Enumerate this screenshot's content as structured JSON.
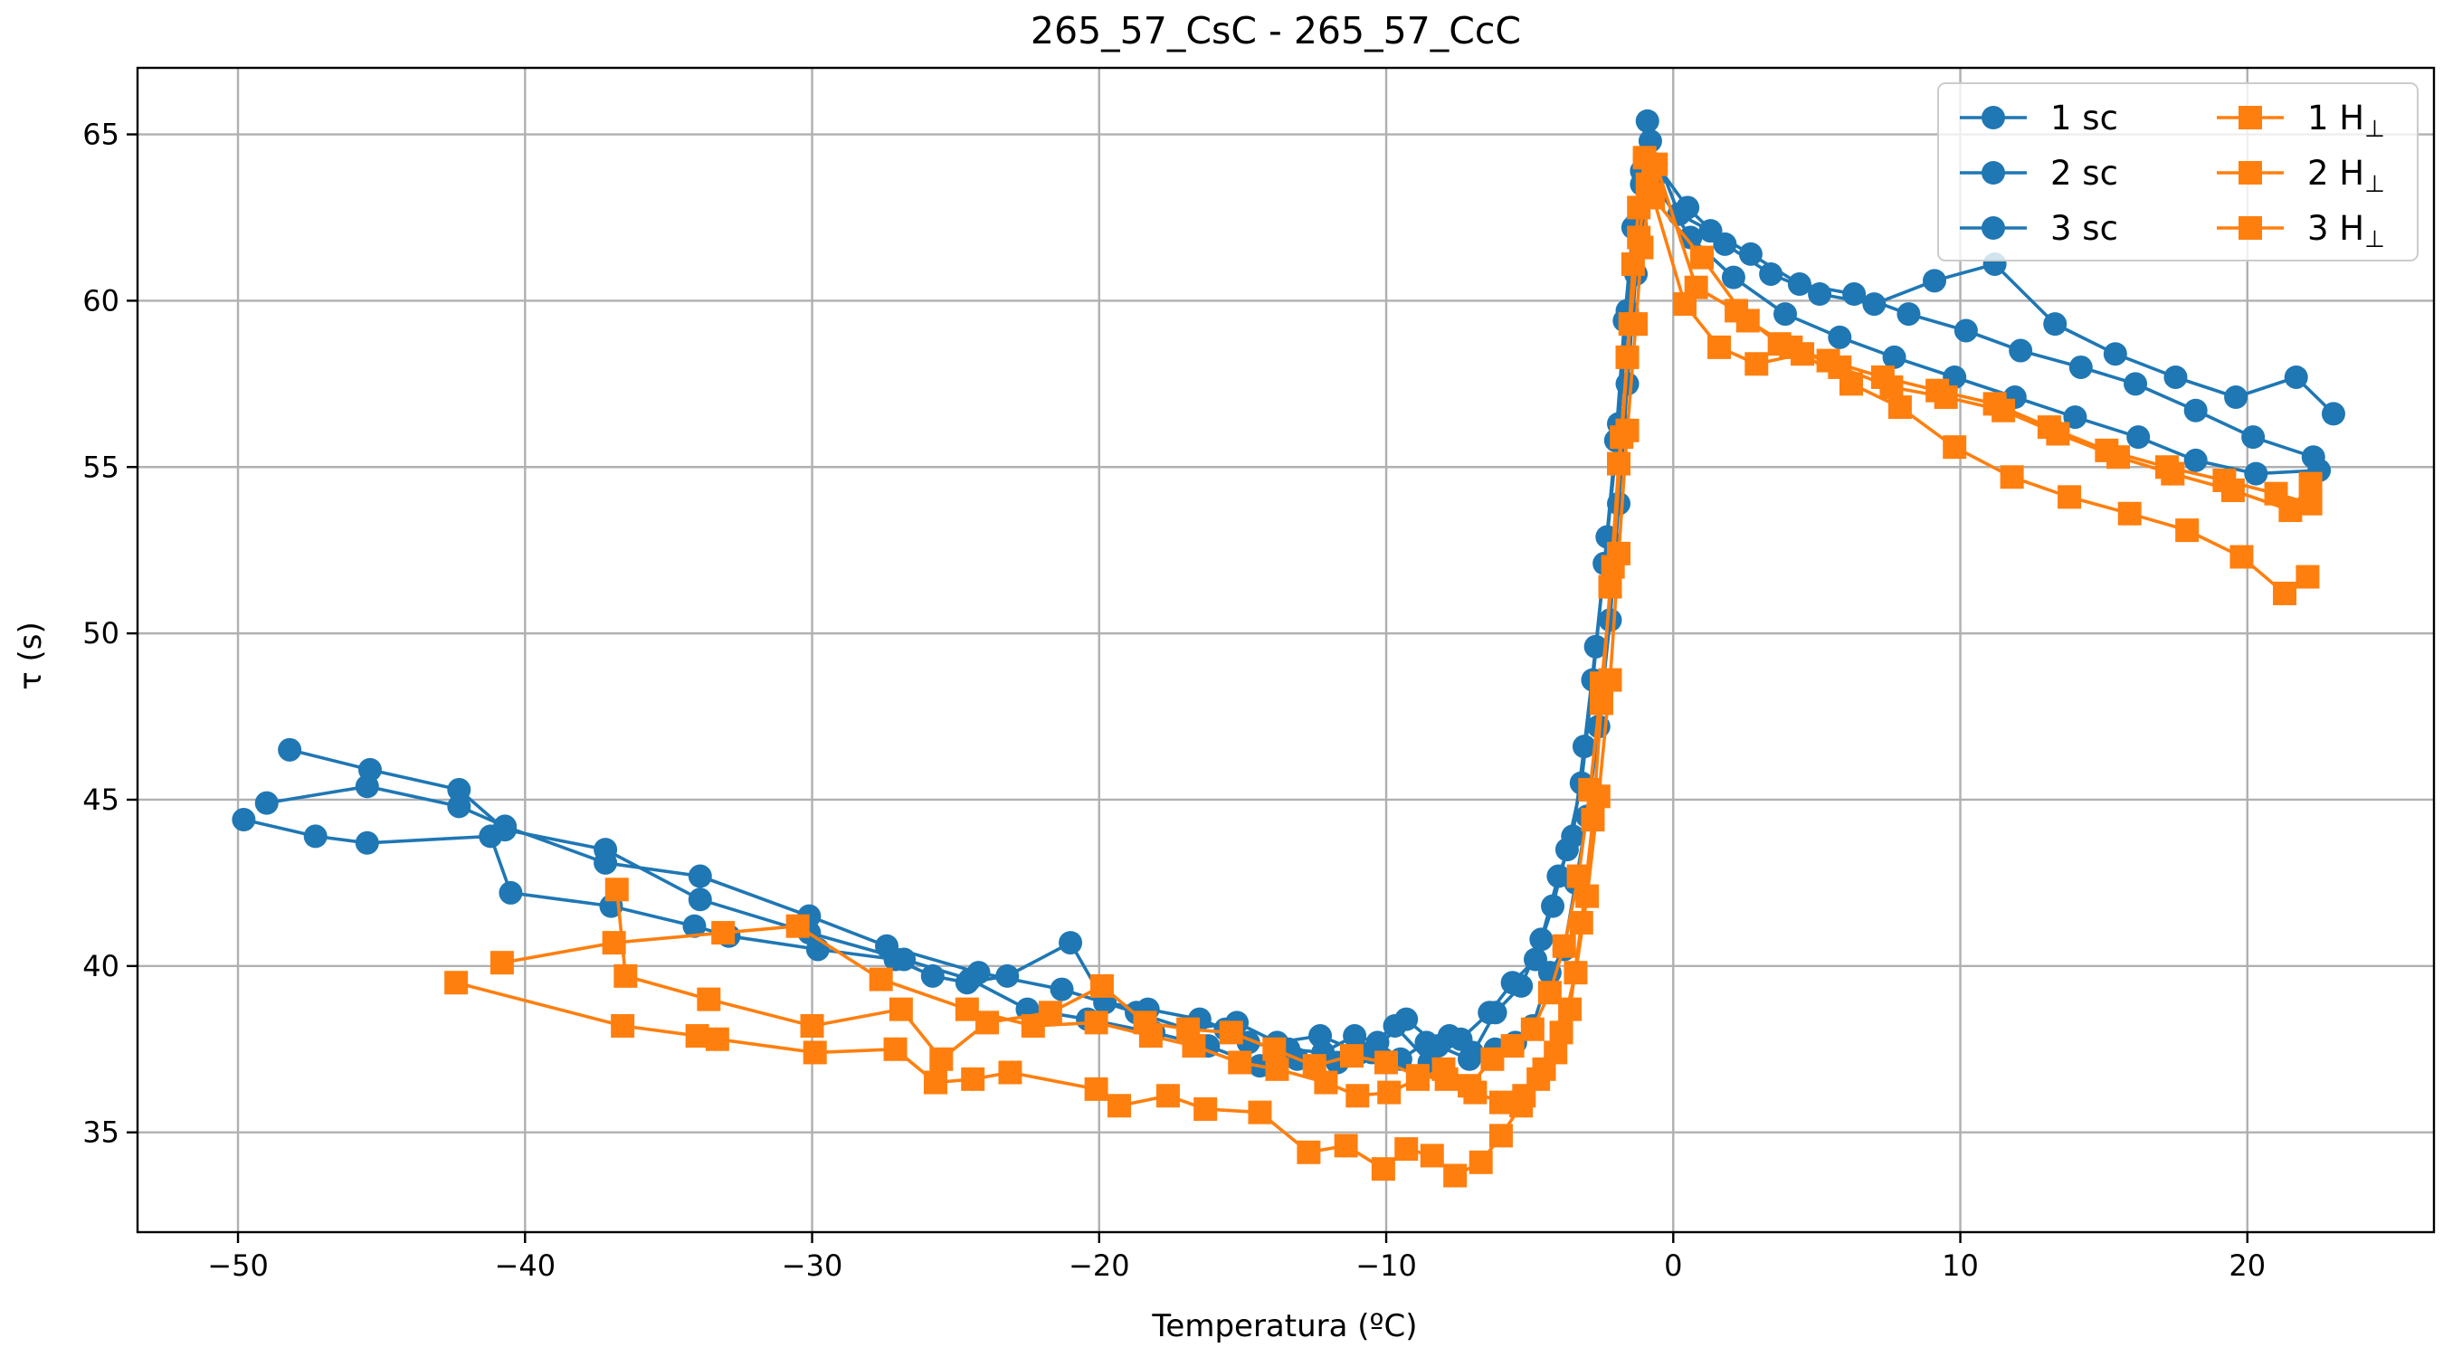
{
  "chart_data": {
    "type": "line",
    "title": "265_57_CsC - 265_57_CcC",
    "xlabel": "Temperatura (ºC)",
    "ylabel": "τ (s)",
    "xlim": [
      -53.5,
      26.5
    ],
    "ylim": [
      32,
      67
    ],
    "xticks": [
      -50,
      -40,
      -30,
      -20,
      -10,
      0,
      10,
      20
    ],
    "xtick_labels": [
      "−50",
      "−40",
      "−30",
      "−20",
      "−10",
      "0",
      "10",
      "20"
    ],
    "yticks": [
      35,
      40,
      45,
      50,
      55,
      60,
      65
    ],
    "ytick_labels": [
      "35",
      "40",
      "45",
      "50",
      "55",
      "60",
      "65"
    ],
    "grid": true,
    "legend_position": "top-right",
    "legend_columns": 2,
    "series": [
      {
        "name": "1 sc",
        "label_main": "1 sc",
        "label_sub": "",
        "color": "#1f77b4",
        "marker": "circle",
        "x": [
          -49.8,
          -47.3,
          -45.5,
          -41.2,
          -40.5,
          -37,
          -34.1,
          -32.9,
          -29.8,
          -27.1,
          -25.8,
          -24.6,
          -23.2,
          -21,
          -19.8,
          -18.3,
          -16.5,
          -15.6,
          -14.8,
          -13.4,
          -12.2,
          -11.1,
          -10.3,
          -9.5,
          -8.6,
          -7.8,
          -7,
          -6.2,
          -5.5,
          -4.9,
          -4.3,
          -3.8,
          -3.4,
          -3,
          -2.6,
          -2.2,
          -1.9,
          -1.6,
          -1.3,
          -1.1,
          -0.8,
          0.2,
          1.3,
          2.7,
          4.4,
          6.3,
          8.2,
          10.2,
          12.1,
          14.2,
          16.1,
          18.2,
          20.2,
          22.3
        ],
        "y": [
          44.4,
          43.9,
          43.7,
          43.9,
          42.2,
          41.8,
          41.2,
          40.9,
          40.5,
          40.2,
          39.7,
          39.5,
          39.7,
          40.7,
          38.9,
          38.7,
          38.4,
          38.1,
          37.7,
          37.5,
          37.4,
          37.9,
          37.7,
          37.2,
          37.7,
          37.9,
          37.4,
          37.5,
          37.7,
          38.2,
          39.8,
          40.5,
          42.5,
          44.5,
          47.2,
          50.4,
          53.9,
          57.5,
          60.8,
          63.5,
          64.8,
          62.6,
          62.1,
          61.4,
          60.5,
          60.2,
          59.6,
          59.1,
          58.5,
          58.0,
          57.5,
          56.7,
          55.9,
          55.3
        ]
      },
      {
        "name": "2 sc",
        "label_main": "2 sc",
        "label_sub": "",
        "color": "#1f77b4",
        "marker": "circle",
        "x": [
          -49,
          -45.5,
          -42.3,
          -40.7,
          -37.2,
          -33.9,
          -30.1,
          -27.4,
          -24.2,
          -21.3,
          -18.7,
          -16.9,
          -15.2,
          -13.8,
          -12.3,
          -10.9,
          -9.7,
          -8.5,
          -7.4,
          -6.4,
          -5.6,
          -4.8,
          -4.2,
          -3.7,
          -3.2,
          -2.8,
          -2.4,
          -2.0,
          -1.7,
          -1.4,
          -1.1,
          -0.9,
          -0.6,
          0.5,
          1.8,
          3.4,
          5.1,
          7.0,
          9.1,
          11.2,
          13.3,
          15.4,
          17.5,
          19.6,
          21.7,
          23.0
        ],
        "y": [
          44.9,
          45.4,
          44.8,
          44.2,
          43.1,
          42.7,
          41.5,
          40.6,
          39.8,
          39.3,
          38.6,
          38.1,
          38.3,
          37.7,
          37.9,
          37.4,
          38.2,
          37.1,
          37.8,
          38.6,
          39.5,
          40.2,
          41.8,
          43.5,
          45.5,
          48.6,
          52.1,
          55.8,
          59.4,
          62.2,
          63.9,
          65.4,
          64.1,
          62.8,
          61.7,
          60.8,
          60.2,
          59.9,
          60.6,
          61.1,
          59.3,
          58.4,
          57.7,
          57.1,
          57.7,
          56.6
        ]
      },
      {
        "name": "3 sc",
        "label_main": "3 sc",
        "label_sub": "",
        "color": "#1f77b4",
        "marker": "circle",
        "x": [
          -48.2,
          -45.4,
          -42.3,
          -40.7,
          -37.2,
          -33.9,
          -30.1,
          -26.8,
          -24.5,
          -22.5,
          -20.4,
          -18.1,
          -16.2,
          -14.4,
          -13.1,
          -11.7,
          -10.5,
          -9.3,
          -8.2,
          -7.1,
          -6.2,
          -5.3,
          -4.6,
          -4.0,
          -3.5,
          -3.1,
          -2.7,
          -2.3,
          -1.9,
          -1.6,
          -1.3,
          -1.0,
          -0.7,
          0.6,
          2.1,
          3.9,
          5.8,
          7.7,
          9.8,
          11.9,
          14.0,
          16.2,
          18.2,
          20.3,
          22.5
        ],
        "y": [
          46.5,
          45.9,
          45.3,
          44.1,
          43.5,
          42.0,
          41.0,
          40.2,
          39.6,
          38.7,
          38.4,
          38.0,
          37.6,
          37.0,
          37.2,
          37.1,
          37.4,
          38.4,
          37.6,
          37.2,
          38.6,
          39.4,
          40.8,
          42.7,
          43.9,
          46.6,
          49.6,
          52.9,
          56.3,
          59.7,
          62.3,
          64.3,
          63.6,
          61.9,
          60.7,
          59.6,
          58.9,
          58.3,
          57.7,
          57.1,
          56.5,
          55.9,
          55.2,
          54.8,
          54.9
        ]
      },
      {
        "name": "1 H⊥",
        "label_main": "1 H",
        "label_sub": "⊥",
        "color": "#ff7f0e",
        "marker": "square",
        "x": [
          -42.4,
          -36.6,
          -34,
          -33.3,
          -29.9,
          -27.1,
          -25.7,
          -24.4,
          -23.1,
          -20.1,
          -19.3,
          -17.6,
          -16.3,
          -14.4,
          -12.7,
          -11.4,
          -10.1,
          -9.3,
          -8.4,
          -7.6,
          -6.7,
          -6.0,
          -5.3,
          -4.7,
          -4.1,
          -3.6,
          -3.2,
          -2.8,
          -2.5,
          -2.2,
          -1.9,
          -1.6,
          -1.4,
          -1.2,
          -1.0,
          -0.7,
          0.4,
          1.6,
          2.9,
          4.5,
          6.2,
          7.9,
          9.8,
          11.8,
          13.8,
          15.9,
          17.9,
          19.8,
          21.3,
          22.1
        ],
        "y": [
          39.5,
          38.2,
          37.9,
          37.8,
          37.4,
          37.5,
          36.5,
          36.6,
          36.8,
          36.3,
          35.8,
          36.1,
          35.7,
          35.6,
          34.4,
          34.6,
          33.9,
          34.5,
          34.3,
          33.7,
          34.1,
          34.9,
          35.8,
          36.6,
          37.4,
          38.7,
          41.3,
          44.4,
          47.9,
          51.4,
          55.1,
          58.3,
          61.1,
          62.8,
          64.3,
          63.1,
          59.9,
          58.6,
          58.1,
          58.4,
          57.5,
          56.8,
          55.6,
          54.7,
          54.1,
          53.6,
          53.1,
          52.3,
          51.2,
          51.7
        ]
      },
      {
        "name": "2 H⊥",
        "label_main": "2 H",
        "label_sub": "⊥",
        "color": "#ff7f0e",
        "marker": "square",
        "x": [
          -40.8,
          -36.9,
          -33.1,
          -30.5,
          -27.6,
          -24.6,
          -22.3,
          -20.1,
          -18.2,
          -16.7,
          -15.1,
          -13.8,
          -12.1,
          -11.0,
          -9.9,
          -8.9,
          -8.0,
          -7.1,
          -6.3,
          -5.6,
          -4.9,
          -4.3,
          -3.8,
          -3.3,
          -2.9,
          -2.5,
          -2.1,
          -1.8,
          -1.5,
          -1.2,
          -0.9,
          -0.6,
          0.8,
          2.2,
          3.7,
          5.4,
          7.3,
          9.2,
          11.2,
          13.1,
          15.1,
          17.2,
          19.2,
          21.0,
          22.2
        ],
        "y": [
          40.1,
          40.7,
          41.0,
          41.2,
          39.6,
          38.7,
          38.2,
          38.3,
          37.9,
          37.6,
          37.1,
          36.9,
          36.5,
          36.1,
          36.2,
          36.6,
          36.9,
          36.4,
          37.2,
          37.6,
          38.1,
          39.2,
          40.6,
          42.7,
          45.3,
          48.5,
          52.0,
          55.9,
          59.3,
          61.9,
          63.5,
          64.1,
          60.4,
          59.7,
          58.7,
          58.2,
          57.7,
          57.3,
          56.9,
          56.2,
          55.5,
          55.0,
          54.6,
          54.2,
          53.9
        ]
      },
      {
        "name": "3 H⊥",
        "label_main": "3 H",
        "label_sub": "⊥",
        "color": "#ff7f0e",
        "marker": "square",
        "x": [
          -36.8,
          -36.5,
          -33.6,
          -30.0,
          -26.9,
          -25.5,
          -23.9,
          -21.7,
          -19.9,
          -18.4,
          -16.9,
          -15.4,
          -13.9,
          -12.5,
          -11.2,
          -10.0,
          -8.9,
          -7.9,
          -6.9,
          -6.0,
          -5.2,
          -4.5,
          -3.9,
          -3.4,
          -3.0,
          -2.6,
          -2.2,
          -1.9,
          -1.6,
          -1.3,
          -1.1,
          -0.8,
          1.0,
          2.6,
          4.1,
          5.8,
          7.6,
          9.5,
          11.5,
          13.4,
          15.5,
          17.4,
          19.5,
          21.5,
          22.2
        ],
        "y": [
          42.3,
          39.7,
          39.0,
          38.2,
          38.7,
          37.2,
          38.3,
          38.6,
          39.4,
          38.3,
          38.1,
          38.0,
          37.5,
          37.0,
          37.3,
          37.1,
          36.7,
          36.6,
          36.2,
          35.9,
          36.1,
          36.9,
          38.0,
          39.8,
          42.1,
          45.1,
          48.6,
          52.4,
          56.1,
          59.3,
          61.6,
          63.2,
          61.3,
          59.4,
          58.6,
          58.0,
          57.4,
          57.1,
          56.7,
          56.0,
          55.3,
          54.8,
          54.3,
          53.7,
          54.5
        ]
      }
    ]
  }
}
